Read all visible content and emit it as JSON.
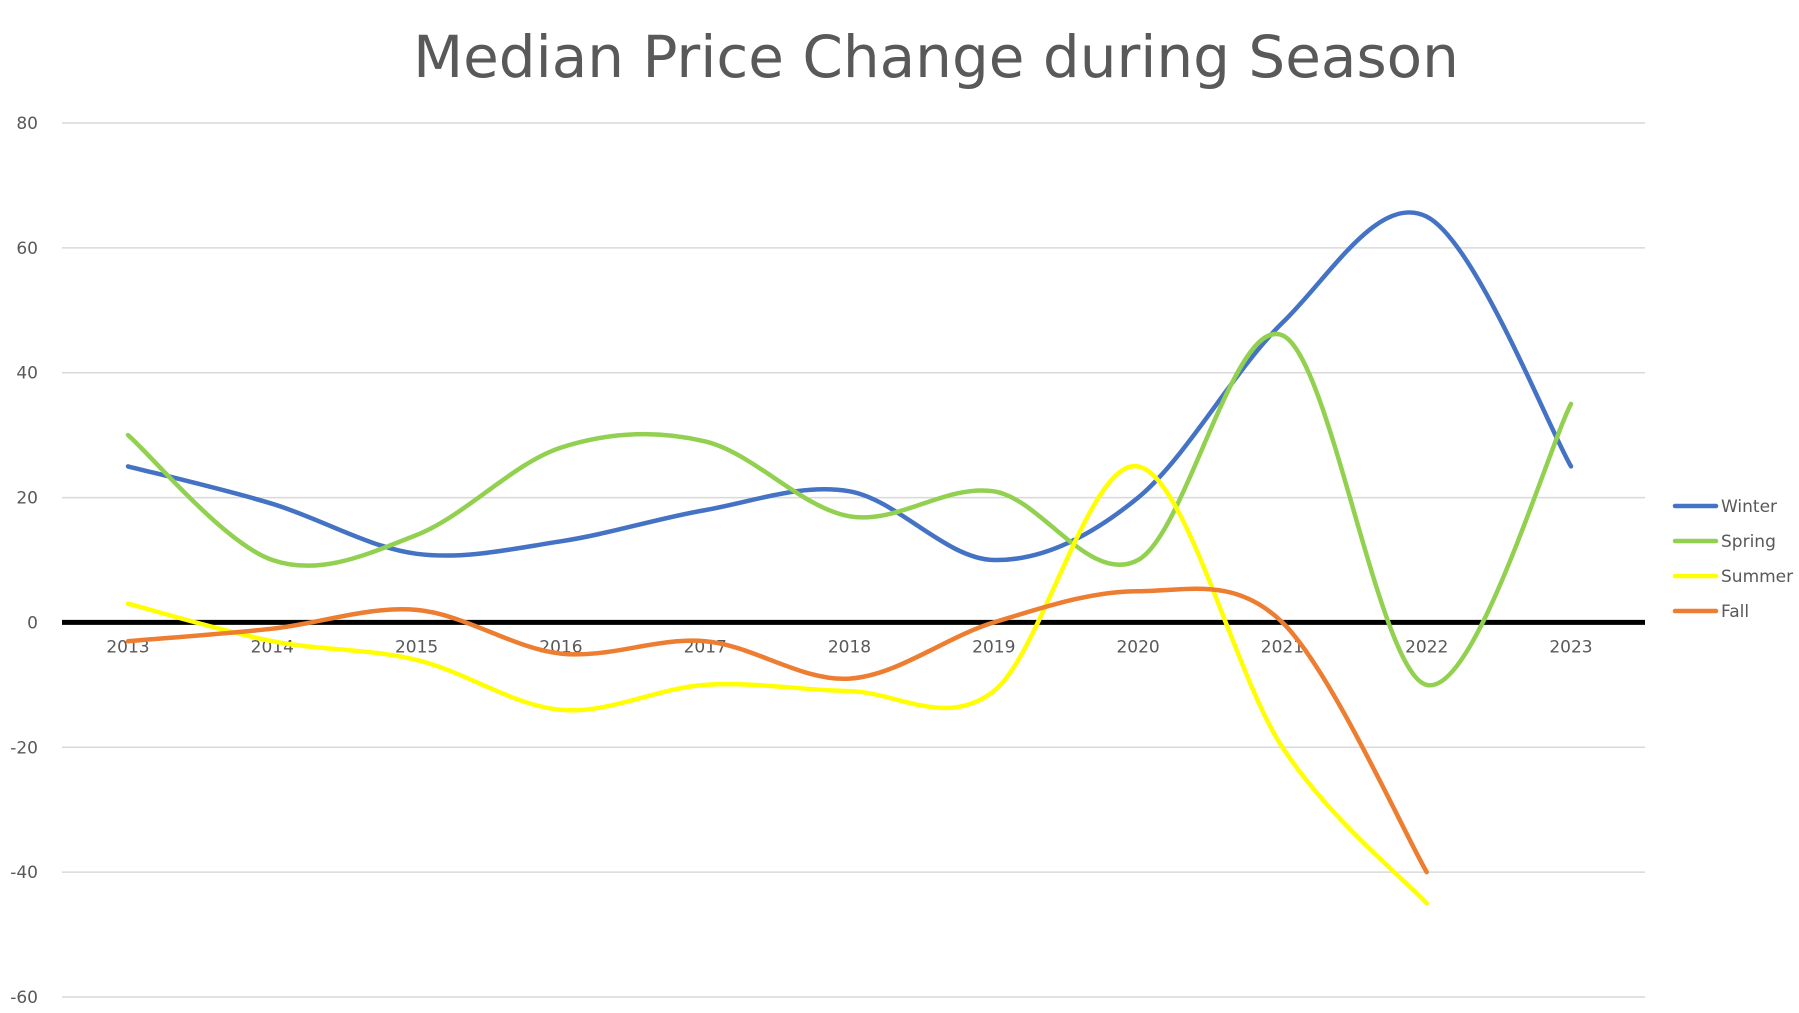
{
  "chart_data": {
    "type": "line",
    "title": "Median Price Change during Season",
    "xlabel": "",
    "ylabel": "",
    "ylim": [
      -60,
      80
    ],
    "yticks": [
      80,
      60,
      40,
      20,
      0,
      -20,
      -40,
      -60
    ],
    "categories": [
      "2013",
      "2014",
      "2015",
      "2016",
      "2017",
      "2018",
      "2019",
      "2020",
      "2021",
      "2022",
      "2023"
    ],
    "grid": true,
    "smooth": true,
    "legend_position": "right",
    "series": [
      {
        "name": "Winter",
        "color": "#4472c4",
        "values": [
          25,
          19,
          11,
          13,
          18,
          21,
          10,
          20,
          48,
          65,
          25
        ]
      },
      {
        "name": "Spring",
        "color": "#92d050",
        "values": [
          30,
          10,
          14,
          28,
          29,
          17,
          21,
          10,
          46,
          -10,
          35
        ]
      },
      {
        "name": "Summer",
        "color": "#ffff00",
        "values": [
          3,
          -3,
          -6,
          -14,
          -10,
          -11,
          -11,
          25,
          -20,
          -45,
          null
        ]
      },
      {
        "name": "Fall",
        "color": "#ed7d31",
        "values": [
          -3,
          -1,
          2,
          -5,
          -3,
          -9,
          0,
          5,
          0,
          -40,
          null
        ]
      }
    ]
  }
}
